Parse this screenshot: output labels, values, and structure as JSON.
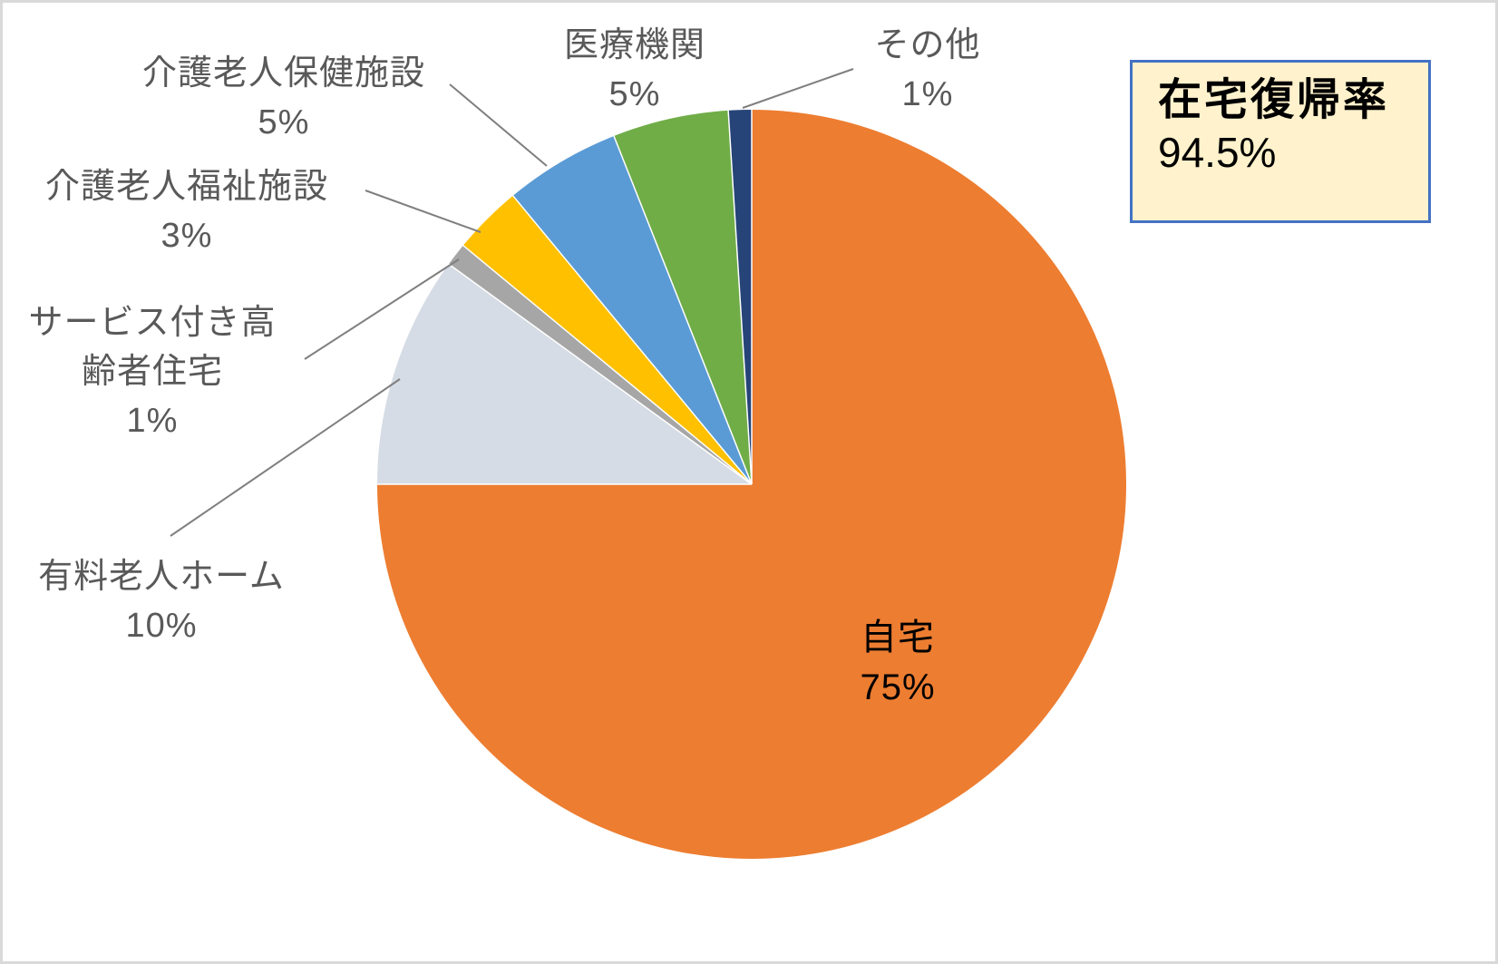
{
  "page": {
    "background_color": "#FFFFFF",
    "border_color": "#D9D9D9"
  },
  "chart_data": {
    "type": "pie",
    "title": "",
    "unit": "%",
    "direction": "clockwise",
    "start_angle_deg": 0,
    "legend": "none",
    "label_text_color": "#595959",
    "inside_label_text_color": "#000000",
    "leader_line_color": "#7F7F7F",
    "slice_separator_color": "#FFFFFF",
    "slices": [
      {
        "label": "自宅",
        "value": 75,
        "value_label": "75%",
        "color": "#ED7D31",
        "label_placement": "inside"
      },
      {
        "label": "有料老人ホーム",
        "value": 10,
        "value_label": "10%",
        "color": "#D6DCE5",
        "label_placement": "outside"
      },
      {
        "label": "サービス付き高齢者住宅",
        "label_lines": [
          "サービス付き高",
          "齢者住宅"
        ],
        "value": 1,
        "value_label": "1%",
        "color": "#A6A6A6",
        "label_placement": "outside"
      },
      {
        "label": "介護老人福祉施設",
        "value": 3,
        "value_label": "3%",
        "color": "#FFC000",
        "label_placement": "outside"
      },
      {
        "label": "介護老人保健施設",
        "value": 5,
        "value_label": "5%",
        "color": "#5B9BD5",
        "label_placement": "outside"
      },
      {
        "label": "医療機関",
        "value": 5,
        "value_label": "5%",
        "color": "#70AD47",
        "label_placement": "outside"
      },
      {
        "label": "その他",
        "value": 1,
        "value_label": "1%",
        "color": "#264478",
        "label_placement": "outside"
      }
    ]
  },
  "callout": {
    "title": "在宅復帰率",
    "value": "94.5%",
    "background_color": "#FFF2CC",
    "border_color": "#4472C4",
    "text_color": "#000000"
  }
}
